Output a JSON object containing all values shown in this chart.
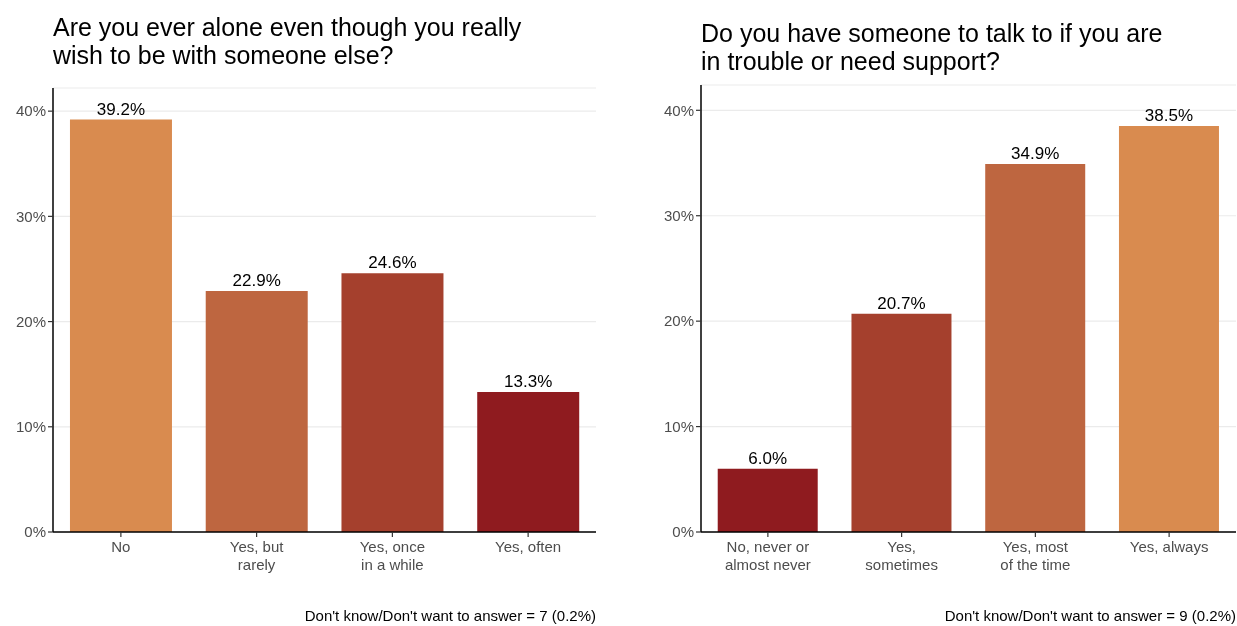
{
  "chart_data": [
    {
      "type": "bar",
      "title": "Are you ever alone even though you really wish to be with someone else?",
      "categories": [
        "No",
        "Yes, but\nrarely",
        "Yes, once\nin a while",
        "Yes, often"
      ],
      "values": [
        39.2,
        22.9,
        24.6,
        13.3
      ],
      "colors": [
        "#d98b4f",
        "#be6640",
        "#a5402d",
        "#8f1b1f"
      ],
      "value_labels": [
        "39.2%",
        "22.9%",
        "24.6%",
        "13.3%"
      ],
      "ylim": [
        0,
        42.2
      ],
      "yticks": [
        {
          "value": 0,
          "label": "0%"
        },
        {
          "value": 10,
          "label": "10%"
        },
        {
          "value": 20,
          "label": "20%"
        },
        {
          "value": 30,
          "label": "30%"
        },
        {
          "value": 40,
          "label": "40%"
        }
      ],
      "grid": "y",
      "annotations": [
        "Don't know/Don't want to answer = 7 (0.2%)"
      ]
    },
    {
      "type": "bar",
      "title": "Do you have someone to talk to if you are in trouble or need support?",
      "categories": [
        "No, never or\nalmost never",
        "Yes,\nsometimes",
        "Yes, most\nof the time",
        "Yes, always"
      ],
      "values": [
        6.0,
        20.7,
        34.9,
        38.5
      ],
      "colors": [
        "#8f1b1f",
        "#a5402d",
        "#be6640",
        "#d98b4f"
      ],
      "value_labels": [
        "6.0%",
        "20.7%",
        "34.9%",
        "38.5%"
      ],
      "ylim": [
        0,
        42.4
      ],
      "yticks": [
        {
          "value": 0,
          "label": "0%"
        },
        {
          "value": 10,
          "label": "10%"
        },
        {
          "value": 20,
          "label": "20%"
        },
        {
          "value": 30,
          "label": "30%"
        },
        {
          "value": 40,
          "label": "40%"
        }
      ],
      "grid": "y",
      "annotations": [
        "Don't know/Don't want to answer = 9 (0.2%)"
      ]
    }
  ]
}
